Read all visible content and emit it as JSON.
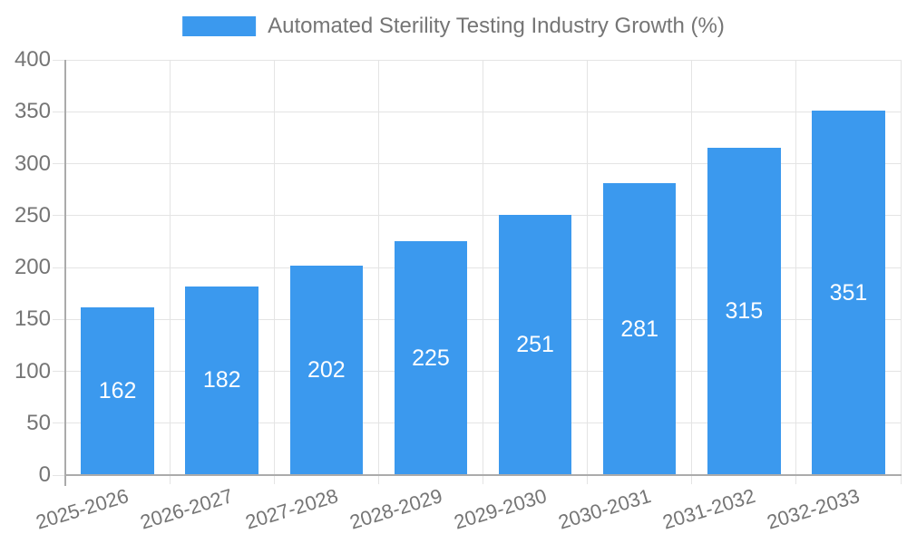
{
  "chart_data": {
    "type": "bar",
    "title": "Automated Sterility Testing Industry Growth (%)",
    "legend": [
      "Automated Sterility Testing Industry Growth (%)"
    ],
    "legend_position": "top-center",
    "categories": [
      "2025-2026",
      "2026-2027",
      "2027-2028",
      "2028-2029",
      "2029-2030",
      "2030-2031",
      "2031-2032",
      "2032-2033"
    ],
    "values": [
      162,
      182,
      202,
      225,
      251,
      281,
      315,
      351
    ],
    "xlabel": "",
    "ylabel": "",
    "ylim": [
      0,
      400
    ],
    "ytick_step": 50,
    "yticks": [
      0,
      50,
      100,
      150,
      200,
      250,
      300,
      350,
      400
    ],
    "grid": "horizontal and vertical light gray",
    "bar_value_labels": "centered white inside bars",
    "x_label_rotation_deg": -17,
    "colors": {
      "bar": "#3b99ee",
      "grid": "#e4e4e4",
      "axis": "#ababab",
      "text": "#757575",
      "bar_label": "#ffffff",
      "background": "#ffffff"
    }
  }
}
